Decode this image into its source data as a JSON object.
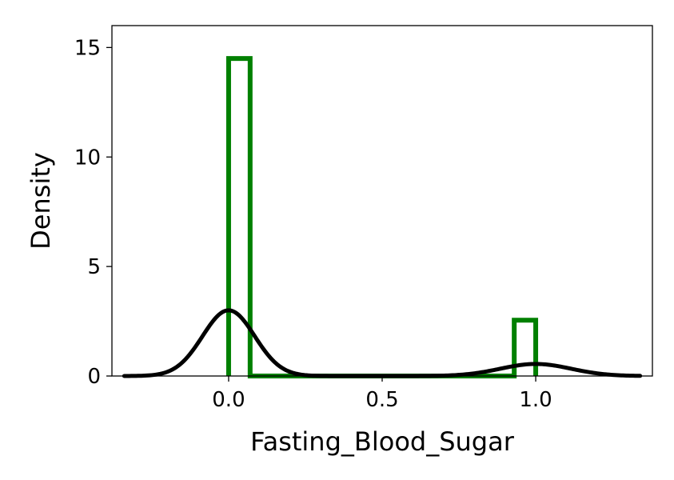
{
  "chart_data": {
    "type": "histogram",
    "xlabel": "Fasting_Blood_Sugar",
    "ylabel": "Density",
    "xlim": [
      -0.38,
      1.38
    ],
    "ylim": [
      0,
      16
    ],
    "xticks": [
      0.0,
      0.5,
      1.0
    ],
    "xtick_labels": [
      "0.0",
      "0.5",
      "1.0"
    ],
    "yticks": [
      0,
      5,
      10,
      15
    ],
    "ytick_labels": [
      "0",
      "5",
      "10",
      "15"
    ],
    "grid": false,
    "legend": "none",
    "histogram": {
      "color": "#008000",
      "fill": "none",
      "bins": [
        {
          "x0": 0.0,
          "x1": 0.07,
          "value": 14.5
        },
        {
          "x0": 0.07,
          "x1": 0.93,
          "value": 0.0
        },
        {
          "x0": 0.93,
          "x1": 1.0,
          "value": 2.55
        }
      ]
    },
    "kde": {
      "color": "#000000",
      "components": [
        {
          "center": 0.0,
          "peak": 3.0,
          "sd": 0.085
        },
        {
          "center": 1.0,
          "peak": 0.55,
          "sd": 0.115
        }
      ],
      "x_range": [
        -0.34,
        1.34
      ]
    }
  }
}
